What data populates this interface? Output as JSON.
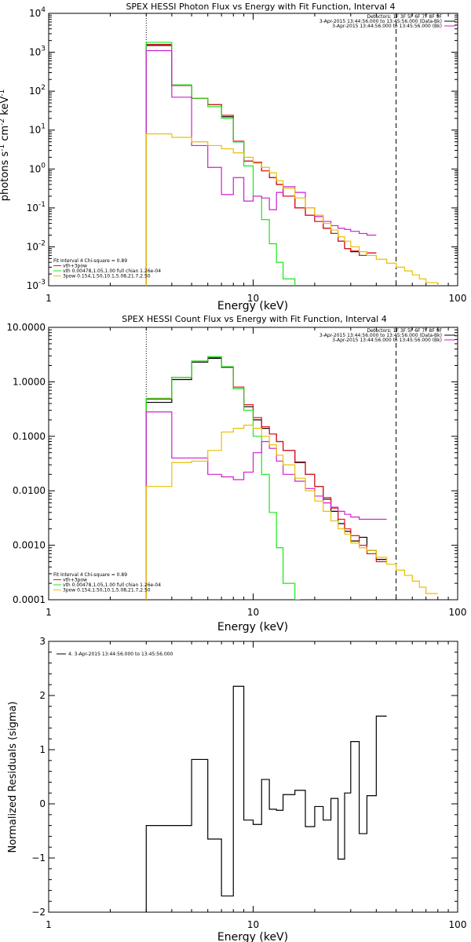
{
  "colors": {
    "black": "#000000",
    "red": "#e8141e",
    "green": "#18e818",
    "magenta": "#d21ed2",
    "gold": "#e8c000"
  },
  "chart_data": [
    {
      "type": "line",
      "title": "SPEX HESSI Photon Flux vs Energy with Fit Function, Interval 4",
      "xlabel": "Energy (keV)",
      "ylabel": "photons s-1 cm-2 keV-1",
      "xscale": "log",
      "yscale": "log",
      "xlim": [
        1,
        100
      ],
      "ylim": [
        0.001,
        10000
      ],
      "xticks": [
        {
          "v": 1,
          "t": "1"
        },
        {
          "v": 10,
          "t": "10"
        },
        {
          "v": 100,
          "t": "100"
        }
      ],
      "yticks": [
        {
          "v": 0.001,
          "t": "10-3"
        },
        {
          "v": 0.01,
          "t": "10-2"
        },
        {
          "v": 0.1,
          "t": "10-1"
        },
        {
          "v": 1,
          "t": "100"
        },
        {
          "v": 10,
          "t": "101"
        },
        {
          "v": 100,
          "t": "102"
        },
        {
          "v": 1000,
          "t": "103"
        },
        {
          "v": 10000,
          "t": "104"
        }
      ],
      "energy_bins": [
        3,
        4,
        5,
        6,
        7,
        8,
        9,
        10,
        11,
        12,
        13,
        14,
        16,
        18,
        20,
        22,
        24,
        26,
        28,
        30,
        33,
        36,
        40,
        45,
        50,
        55,
        60,
        65,
        70,
        80,
        90
      ],
      "vlines": [
        {
          "x": 3,
          "style": "dotted"
        },
        {
          "x": 50,
          "style": "dashed"
        }
      ],
      "legend_top": {
        "lines": [
          "Detectors: 1F 3F 5F 6F 7F 8F 9F",
          "3-Apr-2015 13:44:56.000 to 13:45:56.000 (Data-Bk)",
          "3-Apr-2015 13:44:56.000 to 13:45:56.000 (Bk)"
        ],
        "colors": [
          "#000000",
          "#000000",
          "#d21ed2"
        ]
      },
      "legend_bottom": {
        "lines": [
          "Fit Interval 4  Chi-square = 0.89",
          "vth+3pow",
          "vth 0.00478,1.05,1.00  full chian 1.26e-04",
          "3pow 0.154,1.50,10.1,5.08,21.7,2.50"
        ],
        "colors": [
          "#000000",
          "#e8141e",
          "#18e818",
          "#e8c000"
        ]
      },
      "series": [
        {
          "color": "#000000",
          "x0": 3,
          "x1": 50,
          "values": [
            1500,
            140,
            65,
            45,
            22,
            5,
            1.6,
            1.5,
            0.9,
            0.6,
            0.4,
            0.2,
            0.1,
            0.065,
            0.045,
            0.03,
            0.022,
            0.014,
            0.009,
            0.0075,
            0.006,
            0.007
          ]
        },
        {
          "color": "#e8141e",
          "x0": 3,
          "x1": 50,
          "values": [
            1600,
            140,
            65,
            45,
            24,
            5.2,
            1.6,
            1.5,
            0.9,
            0.6,
            0.4,
            0.2,
            0.1,
            0.065,
            0.045,
            0.03,
            0.022,
            0.014,
            0.009,
            0.0078,
            0.006,
            0.007
          ]
        },
        {
          "color": "#18e818",
          "x0": 3,
          "x1": 17,
          "values": [
            1800,
            145,
            66,
            40,
            20,
            5,
            1.2,
            0.2,
            0.05,
            0.012,
            0.004,
            0.0015,
            0.0007
          ]
        },
        {
          "color": "#d21ed2",
          "x0": 3,
          "x1": 50,
          "values": [
            1100,
            70,
            4,
            1.1,
            0.22,
            0.6,
            0.15,
            0.2,
            0.18,
            0.09,
            0.25,
            0.35,
            0.25,
            0.1,
            0.06,
            0.045,
            0.035,
            0.03,
            0.028,
            0.025,
            0.022,
            0.02
          ]
        },
        {
          "color": "#e8c000",
          "x0": 3,
          "x1": 96,
          "values": [
            8,
            6.5,
            5,
            4,
            3.3,
            2.6,
            2,
            1.4,
            1.1,
            0.8,
            0.5,
            0.32,
            0.18,
            0.1,
            0.065,
            0.04,
            0.027,
            0.018,
            0.014,
            0.01,
            0.0075,
            0.006,
            0.0048,
            0.0038,
            0.003,
            0.0024,
            0.0019,
            0.0015,
            0.0012,
            0.0009
          ]
        }
      ]
    },
    {
      "type": "line",
      "title": "SPEX HESSI Count Flux vs Energy with Fit Function, Interval 4",
      "xlabel": "Energy (keV)",
      "ylabel": "",
      "xscale": "log",
      "yscale": "log",
      "xlim": [
        1,
        100
      ],
      "ylim": [
        0.0001,
        10
      ],
      "xticks": [
        {
          "v": 1,
          "t": "1"
        },
        {
          "v": 10,
          "t": "10"
        },
        {
          "v": 100,
          "t": "100"
        }
      ],
      "yticks": [
        {
          "v": 0.0001,
          "t": "0.0001"
        },
        {
          "v": 0.001,
          "t": "0.0010"
        },
        {
          "v": 0.01,
          "t": "0.0100"
        },
        {
          "v": 0.1,
          "t": "0.1000"
        },
        {
          "v": 1,
          "t": "1.0000"
        },
        {
          "v": 10,
          "t": "10.0000"
        }
      ],
      "energy_bins": [
        3,
        4,
        5,
        6,
        7,
        8,
        9,
        10,
        11,
        12,
        13,
        14,
        16,
        18,
        20,
        22,
        24,
        26,
        28,
        30,
        33,
        36,
        40,
        45,
        50,
        55,
        60,
        65,
        70,
        80,
        90,
        100
      ],
      "vlines": [
        {
          "x": 3,
          "style": "dotted"
        },
        {
          "x": 50,
          "style": "dashed"
        }
      ],
      "legend_top": {
        "lines": [
          "Detectors: 1F 3F 5F 6F 7F 8F 9F",
          "3-Apr-2015 13:44:56.000 to 13:45:56.000 (Data-Bk)",
          "3-Apr-2015 13:44:56.000 to 13:45:56.000 (Bk)"
        ],
        "colors": [
          "#000000",
          "#000000",
          "#d21ed2"
        ]
      },
      "legend_bottom": {
        "lines": [
          "Fit Interval 4  Chi-square = 0.89",
          "vth+3pow",
          "vth 0.00478,1.05,1.00  full chian 1.26e-04",
          "3pow 0.154,1.50,10.1,5.08,21.7,2.50"
        ],
        "colors": [
          "#000000",
          "#e8141e",
          "#18e818",
          "#e8c000"
        ]
      },
      "series": [
        {
          "color": "#000000",
          "x0": 3,
          "x1": 50,
          "values": [
            0.42,
            1.1,
            2.3,
            2.7,
            1.85,
            0.75,
            0.35,
            0.2,
            0.14,
            0.11,
            0.08,
            0.055,
            0.033,
            0.02,
            0.012,
            0.007,
            0.0042,
            0.0025,
            0.0018,
            0.0012,
            0.0014,
            0.0008,
            0.00055
          ]
        },
        {
          "color": "#e8141e",
          "x0": 3,
          "x1": 50,
          "values": [
            0.48,
            1.2,
            2.4,
            2.8,
            1.9,
            0.8,
            0.38,
            0.22,
            0.15,
            0.11,
            0.08,
            0.055,
            0.034,
            0.02,
            0.012,
            0.0075,
            0.0048,
            0.003,
            0.002,
            0.0015,
            0.001,
            0.0007,
            0.0005
          ]
        },
        {
          "color": "#18e818",
          "x0": 3,
          "x1": 17,
          "values": [
            0.5,
            1.2,
            2.4,
            2.9,
            1.9,
            0.75,
            0.3,
            0.1,
            0.02,
            0.004,
            0.0009,
            0.0002,
            0.0001
          ]
        },
        {
          "color": "#d21ed2",
          "x0": 3,
          "x1": 50,
          "values": [
            0.28,
            0.04,
            0.04,
            0.02,
            0.018,
            0.016,
            0.022,
            0.05,
            0.08,
            0.06,
            0.035,
            0.02,
            0.015,
            0.011,
            0.008,
            0.006,
            0.005,
            0.0042,
            0.0037,
            0.0033,
            0.003,
            0.003,
            0.003
          ]
        },
        {
          "color": "#e8c000",
          "x0": 3,
          "x1": 100,
          "values": [
            0.012,
            0.033,
            0.035,
            0.055,
            0.12,
            0.14,
            0.16,
            0.14,
            0.1,
            0.07,
            0.045,
            0.03,
            0.017,
            0.01,
            0.0065,
            0.0042,
            0.0028,
            0.002,
            0.0016,
            0.0011,
            0.0009,
            0.0008,
            0.0006,
            0.00045,
            0.00035,
            0.00028,
            0.00022,
            0.00017,
            0.00013
          ]
        }
      ]
    },
    {
      "type": "line",
      "title": "",
      "xlabel": "Energy (keV)",
      "ylabel": "Normalized Residuals (sigma)",
      "xscale": "log",
      "yscale": "linear",
      "xlim": [
        1,
        100
      ],
      "ylim": [
        -2,
        3
      ],
      "xticks": [
        {
          "v": 1,
          "t": "1"
        },
        {
          "v": 10,
          "t": "10"
        },
        {
          "v": 100,
          "t": "100"
        }
      ],
      "yticks": [
        {
          "v": -2,
          "t": "−2"
        },
        {
          "v": -1,
          "t": "−1"
        },
        {
          "v": 0,
          "t": "0"
        },
        {
          "v": 1,
          "t": "1"
        },
        {
          "v": 2,
          "t": "2"
        },
        {
          "v": 3,
          "t": "3"
        }
      ],
      "energy_bins": [
        3,
        4,
        5,
        6,
        7,
        8,
        9,
        10,
        11,
        12,
        13,
        14,
        16,
        18,
        20,
        22,
        24,
        26,
        28,
        30,
        33,
        36,
        40,
        45,
        50
      ],
      "legend_top": {
        "lines": [
          "4. 3-Apr-2015 13:44:56.000 to 13:45:56.000"
        ],
        "colors": [
          "#000000"
        ]
      },
      "series": [
        {
          "color": "#000000",
          "x0": 3,
          "x1": 50,
          "values": [
            -0.4,
            -0.4,
            0.82,
            -0.65,
            -1.7,
            2.17,
            -0.3,
            -0.38,
            0.45,
            -0.1,
            -0.12,
            0.17,
            0.25,
            -0.42,
            -0.05,
            -0.3,
            0.1,
            -1.02,
            0.2,
            1.15,
            -0.55,
            0.15,
            1.62
          ]
        }
      ]
    }
  ]
}
